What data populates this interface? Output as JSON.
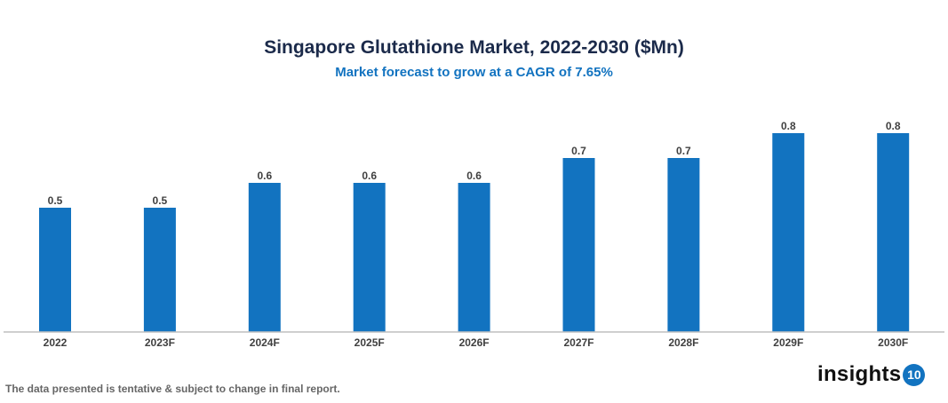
{
  "chart_data": {
    "type": "bar",
    "title": "Singapore Glutathione Market, 2022-2030 ($Mn)",
    "subtitle": "Market forecast to grow at a CAGR of 7.65%",
    "categories": [
      "2022",
      "2023F",
      "2024F",
      "2025F",
      "2026F",
      "2027F",
      "2028F",
      "2029F",
      "2030F"
    ],
    "values": [
      0.5,
      0.5,
      0.6,
      0.6,
      0.6,
      0.7,
      0.7,
      0.8,
      0.8
    ],
    "data_labels": [
      "0.5",
      "0.5",
      "0.6",
      "0.6",
      "0.6",
      "0.7",
      "0.7",
      "0.8",
      "0.8"
    ],
    "xlabel": "",
    "ylabel": "",
    "ylim": [
      0,
      0.8
    ],
    "grid": false,
    "legend": "none",
    "bar_color": "#1273c0"
  },
  "footer": {
    "note": "The data presented is tentative & subject to change in final report.",
    "logo_text": "insights",
    "logo_badge": "10"
  }
}
